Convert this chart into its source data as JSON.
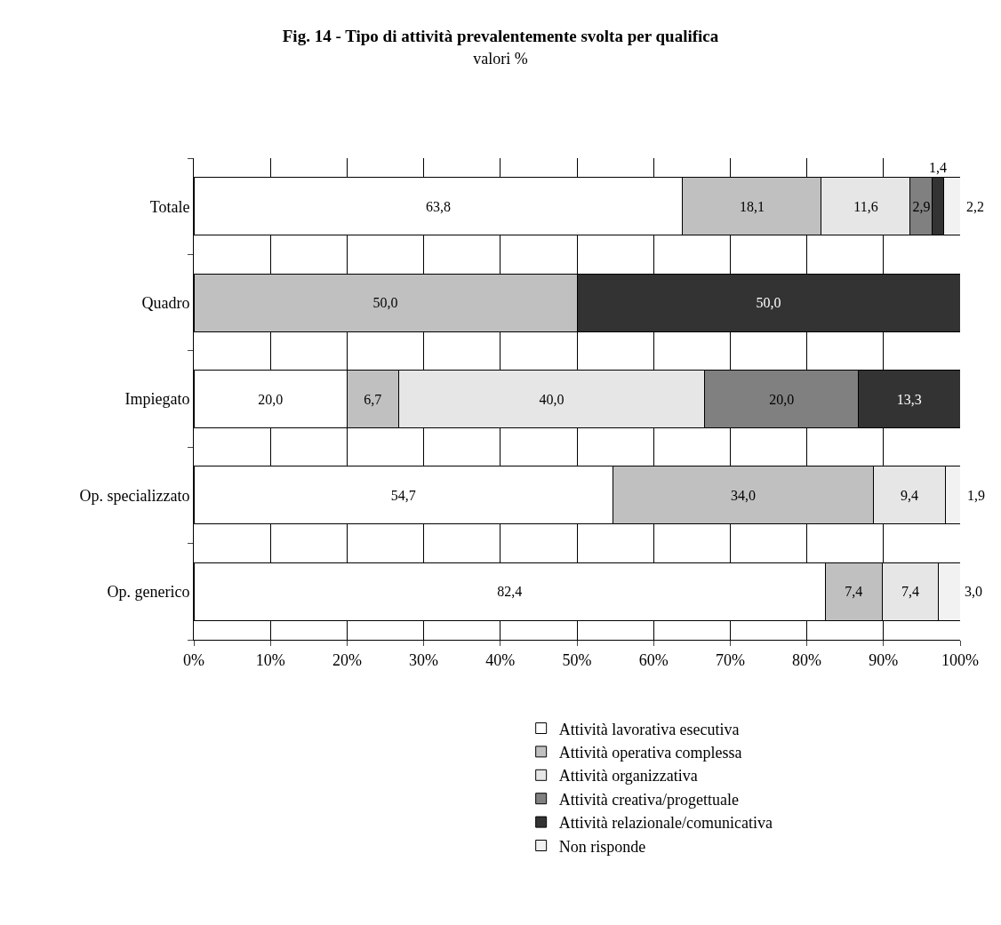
{
  "chart_data": {
    "type": "bar",
    "orientation": "horizontal",
    "stacked": true,
    "title": "Fig. 14 - Tipo di attività prevalentemente svolta per qualifica",
    "subtitle": "valori %",
    "categories": [
      "Totale",
      "Quadro",
      "Impiegato",
      "Op. specializzato",
      "Op. generico"
    ],
    "series": [
      {
        "name": "Attività lavorativa esecutiva",
        "color": "#ffffff",
        "values": [
          63.8,
          null,
          20.0,
          54.7,
          82.4
        ],
        "value_labels": [
          "63,8",
          null,
          "20,0",
          "54,7",
          "82,4"
        ]
      },
      {
        "name": "Attività operativa complessa",
        "color": "#c0c0c0",
        "values": [
          18.1,
          50.0,
          6.7,
          34.0,
          7.4
        ],
        "value_labels": [
          "18,1",
          "50,0",
          "6,7",
          "34,0",
          "7,4"
        ]
      },
      {
        "name": "Attività organizzativa",
        "color": "#e6e6e6",
        "values": [
          11.6,
          null,
          40.0,
          9.4,
          7.4
        ],
        "value_labels": [
          "11,6",
          null,
          "40,0",
          "9,4",
          "7,4"
        ]
      },
      {
        "name": "Attività creativa/progettuale",
        "color": "#808080",
        "values": [
          2.9,
          null,
          20.0,
          null,
          null
        ],
        "value_labels": [
          "2,9",
          null,
          "20,0",
          null,
          null
        ]
      },
      {
        "name": "Attività relazionale/comunicativa",
        "color": "#333333",
        "values": [
          1.4,
          50.0,
          13.3,
          null,
          null
        ],
        "value_labels": [
          "1,4",
          "50,0",
          "13,3",
          null,
          null
        ]
      },
      {
        "name": "Non risponde",
        "color": "#f2f2f2",
        "values": [
          2.2,
          null,
          null,
          1.9,
          3.0
        ],
        "value_labels": [
          "2,2",
          null,
          null,
          "1,9",
          "3,0"
        ]
      }
    ],
    "xlim": [
      0,
      100
    ],
    "xticks": [
      {
        "value": 0,
        "label": "0%"
      },
      {
        "value": 10,
        "label": "10%"
      },
      {
        "value": 20,
        "label": "20%"
      },
      {
        "value": 30,
        "label": "30%"
      },
      {
        "value": 40,
        "label": "40%"
      },
      {
        "value": 50,
        "label": "50%"
      },
      {
        "value": 60,
        "label": "60%"
      },
      {
        "value": 70,
        "label": "70%"
      },
      {
        "value": 80,
        "label": "80%"
      },
      {
        "value": 90,
        "label": "90%"
      },
      {
        "value": 100,
        "label": "100%"
      }
    ],
    "grid": "x",
    "legend": "bottom"
  }
}
